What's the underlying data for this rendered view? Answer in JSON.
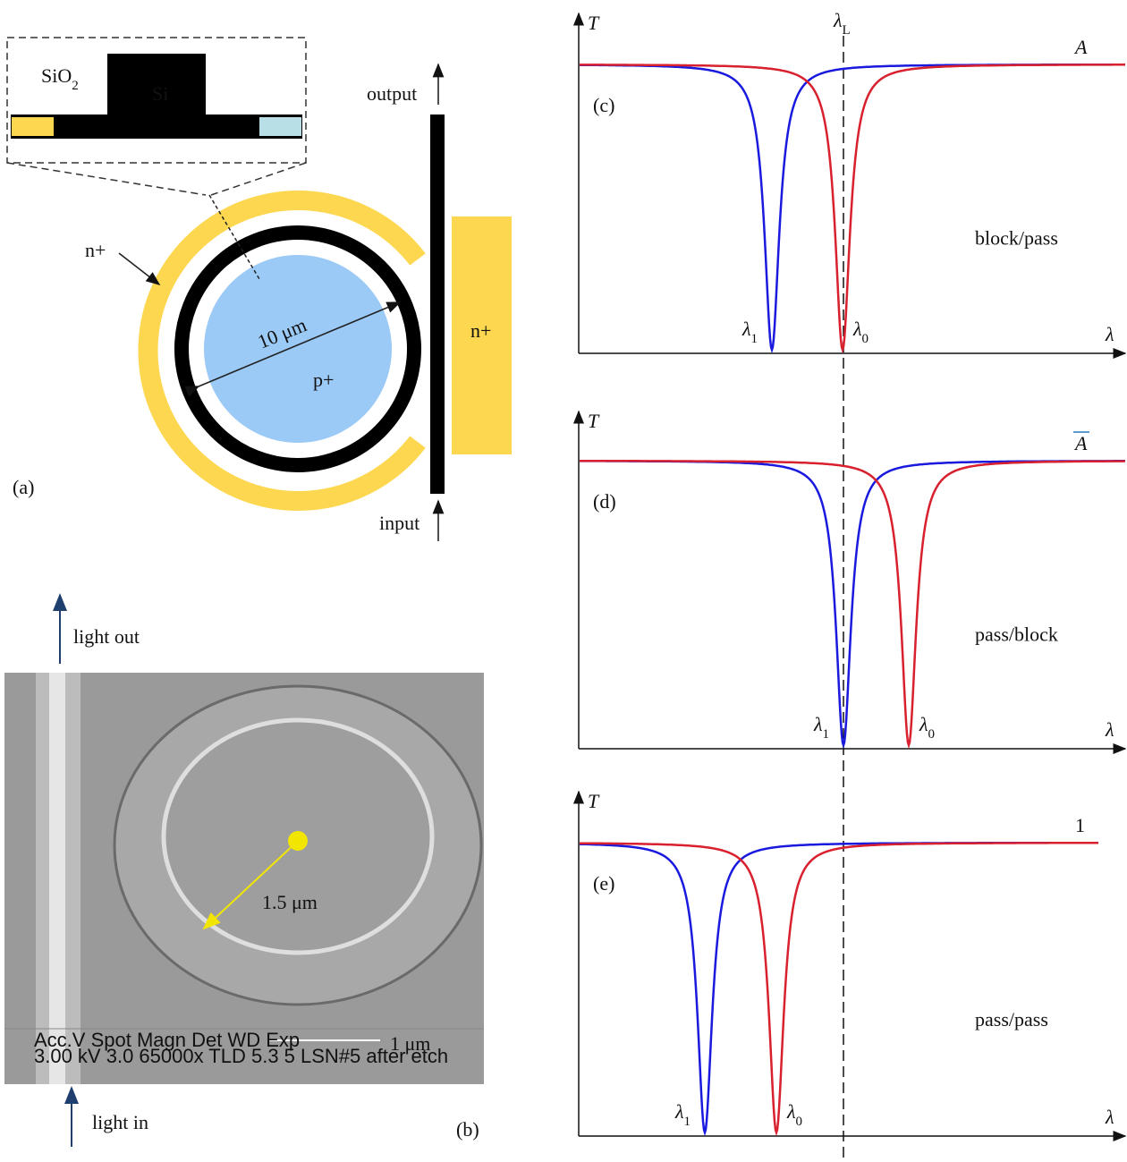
{
  "panel_a": {
    "label": "(a)",
    "inset": {
      "oxide": {
        "base": "SiO",
        "sub": "2"
      },
      "core": "Si"
    },
    "output": "output",
    "input": "input",
    "n_plus_left": "n+",
    "n_plus_right": "n+",
    "diameter": "10 μm",
    "p_plus": "p+"
  },
  "panel_b": {
    "label": "(b)",
    "light_out": "light out",
    "light_in": "light in",
    "radius": "1.5 μm",
    "scale_bar": "1 μm",
    "sem_header": "Acc.V  Spot Magn    Det  WD  Exp",
    "sem_values": "3.00 kV 3.0  65000x  TLD  5.3   5     LSN#5 after etch"
  },
  "laser_line": {
    "base": "λ",
    "sub": "L"
  },
  "plots": [
    {
      "label": "(c)",
      "y_axis": "T",
      "x_axis": "λ",
      "output_state": "A",
      "state": "block/pass",
      "dip_blue": {
        "base": "λ",
        "sub": "1"
      },
      "dip_red": {
        "base": "λ",
        "sub": "0"
      }
    },
    {
      "label": "(d)",
      "y_axis": "T",
      "x_axis": "λ",
      "output_state": "A",
      "state": "pass/block",
      "dip_blue": {
        "base": "λ",
        "sub": "1"
      },
      "dip_red": {
        "base": "λ",
        "sub": "0"
      }
    },
    {
      "label": "(e)",
      "y_axis": "T",
      "x_axis": "λ",
      "output_state": "1",
      "state": "pass/pass",
      "dip_blue": {
        "base": "λ",
        "sub": "1"
      },
      "dip_red": {
        "base": "λ",
        "sub": "0"
      }
    }
  ]
}
